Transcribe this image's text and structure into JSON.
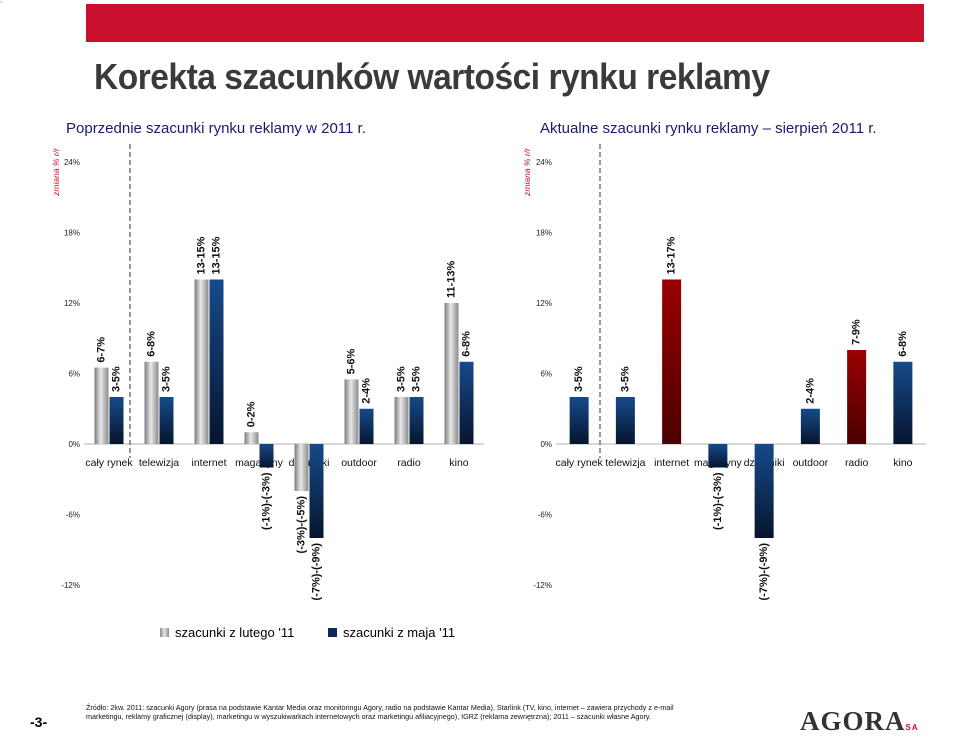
{
  "slide": {
    "title": "Korekta  szacunków wartości rynku reklamy",
    "subtitle_left": "Poprzednie szacunki rynku reklamy w 2011 r.",
    "subtitle_right": "Aktualne szacunki rynku reklamy – sierpień 2011 r.",
    "legend_grey": "szacunki z lutego '11",
    "legend_navy": "szacunki z maja '11",
    "footnote": "Źródło: 2kw. 2011: szacunki Agory (prasa na podstawie Kantar Media oraz monitoringu Agory, radio na podstawie Kantar Media), Starlink (TV, kino, internet – zawiera przychody z e-mail marketingu, reklamy graficznej (display), marketingu w wyszukiwarkach internetowych oraz marketingu afiliacyjnego), IGRZ (reklama zewnętrzna); 2011 – szacunki własne Agory.",
    "page_number": "-3-",
    "logo_text": "AGORA",
    "logo_suffix": "SA",
    "corner_mark": "`",
    "colors": {
      "accent_red": "#c8102e",
      "navy": "#0b2a5a",
      "grey": "#a8a8a8",
      "dark_red": "#7a0000"
    }
  },
  "chart_data": [
    {
      "type": "bar",
      "ylabel": "zmiana % r/r",
      "ylim": [
        -12,
        24
      ],
      "yticks": [
        24,
        18,
        12,
        6,
        0,
        -6,
        -12
      ],
      "ytick_labels": [
        "24%",
        "18%",
        "12%",
        "6%",
        "0%",
        "-6%",
        "-12%"
      ],
      "categories": [
        "cały rynek",
        "telewizja",
        "internet",
        "magazyny",
        "dzienniki",
        "outdoor",
        "radio",
        "kino"
      ],
      "series": [
        {
          "name": "szacunki z lutego '11",
          "values": [
            6.5,
            7,
            14,
            1,
            -4,
            5.5,
            4,
            12
          ],
          "labels": [
            "6-7%",
            "6-8%",
            "13-15%",
            "0-2%",
            "(-3%)-(-5%)",
            "5-6%",
            "3-5%",
            "11-13%"
          ]
        },
        {
          "name": "szacunki z maja '11",
          "values": [
            4,
            4,
            14,
            -2,
            -8,
            3,
            4,
            7
          ],
          "labels": [
            "3-5%",
            "3-5%",
            "13-15%",
            "(-1%)-(-3%)",
            "(-7%)-(-9%)",
            "2-4%",
            "3-5%",
            "6-8%"
          ]
        }
      ]
    },
    {
      "type": "bar",
      "ylabel": "zmiana % r/r",
      "ylim": [
        -12,
        24
      ],
      "yticks": [
        24,
        18,
        12,
        6,
        0,
        -6,
        -12
      ],
      "ytick_labels": [
        "24%",
        "18%",
        "12%",
        "6%",
        "0%",
        "-6%",
        "-12%"
      ],
      "categories": [
        "cały rynek",
        "telewizja",
        "internet",
        "magazyny",
        "dzienniki",
        "outdoor",
        "radio",
        "kino"
      ],
      "values": [
        4,
        4,
        14,
        -2,
        -8,
        3,
        8,
        7
      ],
      "labels": [
        "3-5%",
        "3-5%",
        "13-17%",
        "(-1%)-(-3%)",
        "(-7%)-(-9%)",
        "2-4%",
        "7-9%",
        "6-8%"
      ],
      "colors": [
        "navy",
        "navy",
        "dark_red",
        "navy",
        "navy",
        "navy",
        "dark_red",
        "navy"
      ]
    }
  ]
}
